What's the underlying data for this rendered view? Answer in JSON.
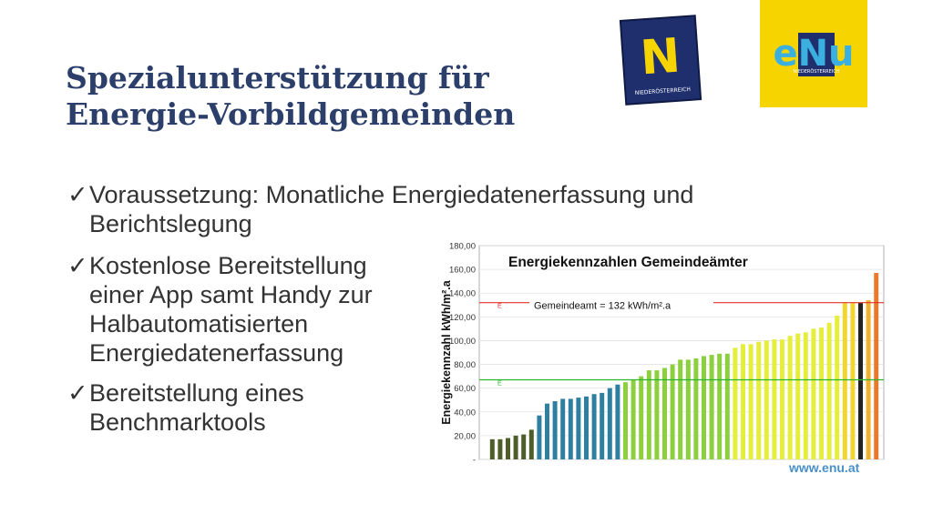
{
  "slide": {
    "title_line1": "Spezialunterstützung für",
    "title_line2": "Energie-Vorbildgemeinden",
    "footer_url": "www.enu.at"
  },
  "logos": {
    "noe_letter": "N",
    "noe_text": "NIEDERÖSTERREICH",
    "enu_word": "eNu",
    "enu_sub": "NIEDERÖSTERREICH"
  },
  "bullets": [
    {
      "icon": "check-icon",
      "text_line1": "Voraussetzung: Monatliche Energiedatenerfassung und",
      "text_line2": "Berichtslegung"
    },
    {
      "icon": "check-icon",
      "text_line1": "Kostenlose Bereitstellung",
      "text_line2": "einer App samt Handy zur",
      "text_line3": "Halbautomatisierten",
      "text_line4": "Energiedatenerfassung"
    },
    {
      "icon": "check-icon",
      "text_line1": "Bereitstellung eines",
      "text_line2": "Benchmarktools"
    }
  ],
  "chart_data": {
    "type": "bar",
    "title": "Energiekennzahlen Gemeindeämter",
    "ylabel": "Energiekennzahl kWh/m².a",
    "ylim": [
      0,
      180
    ],
    "yticks": [
      "-",
      "20,00",
      "40,00",
      "60,00",
      "80,00",
      "100,00",
      "120,00",
      "140,00",
      "160,00",
      "180,00"
    ],
    "grid": true,
    "legend": "none",
    "annotation": "Gemeindeamt = 132 kWh/m².a",
    "reference_lines": [
      {
        "value": 132,
        "color": "#e0322a",
        "marker": "E"
      },
      {
        "value": 67,
        "color": "#2bb52b",
        "marker": "E"
      }
    ],
    "values": [
      17,
      17,
      18,
      20,
      21,
      25,
      37,
      47,
      49,
      51,
      51,
      52,
      53,
      55,
      56,
      60,
      63,
      65,
      67,
      70,
      75,
      75,
      77,
      80,
      84,
      84,
      85,
      87,
      88,
      89,
      89,
      94,
      97,
      97,
      99,
      100,
      101,
      101,
      104,
      106,
      107,
      110,
      111,
      115,
      121,
      132,
      132,
      132,
      134,
      157
    ],
    "colors": [
      "#4e5e2a",
      "#4e5e2a",
      "#4e5e2a",
      "#4e5e2a",
      "#4e5e2a",
      "#4e5e2a",
      "#2f7fa0",
      "#2f7fa0",
      "#2f7fa0",
      "#2f7fa0",
      "#2f7fa0",
      "#2f7fa0",
      "#2f7fa0",
      "#2f7fa0",
      "#2f7fa0",
      "#2f7fa0",
      "#2f7fa0",
      "#8ccf3f",
      "#8ccf3f",
      "#8ccf3f",
      "#8ccf3f",
      "#8ccf3f",
      "#8ccf3f",
      "#8ccf3f",
      "#8ccf3f",
      "#8ccf3f",
      "#8ccf3f",
      "#8ccf3f",
      "#8ccf3f",
      "#8ccf3f",
      "#8ccf3f",
      "#e5ee3a",
      "#e5ee3a",
      "#e5ee3a",
      "#e5ee3a",
      "#e5ee3a",
      "#e5ee3a",
      "#e5ee3a",
      "#e5ee3a",
      "#e5ee3a",
      "#e5ee3a",
      "#e5ee3a",
      "#e5ee3a",
      "#e5ee3a",
      "#e5ee3a",
      "#f2d630",
      "#f2d630",
      "#222222",
      "#f0b030",
      "#e87a2a"
    ]
  }
}
